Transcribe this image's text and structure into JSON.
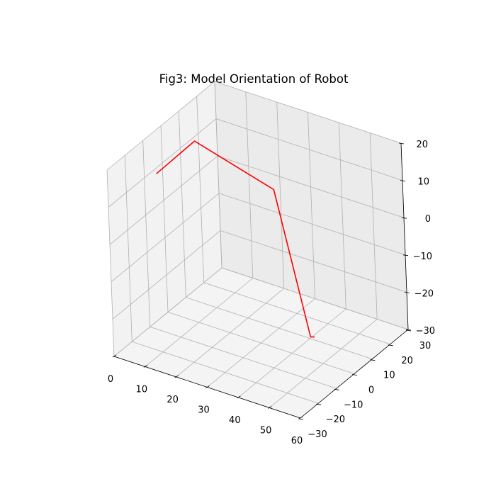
{
  "chart_data": {
    "type": "line3d",
    "title": "Fig3: Model Orientation of Robot",
    "xlabel": "",
    "ylabel": "",
    "zlabel": "",
    "xlim": [
      0,
      60
    ],
    "ylim": [
      -30,
      30
    ],
    "zlim": [
      -30,
      20
    ],
    "x_ticks": [
      "0",
      "10",
      "20",
      "30",
      "40",
      "50",
      "60"
    ],
    "y_ticks": [
      "−30",
      "−20",
      "−10",
      "0",
      "10",
      "20",
      "30"
    ],
    "z_ticks": [
      "−30",
      "−20",
      "−10",
      "0",
      "10",
      "20"
    ],
    "grid": true,
    "pane_colors": {
      "xz": "#f2f2f2",
      "yz": "#ebebeb",
      "floor": "#f4f4f4"
    },
    "series": [
      {
        "color": "#ff0000",
        "points": [
          [
            7,
            -15,
            15
          ],
          [
            12,
            -2,
            20
          ],
          [
            33,
            5,
            10
          ],
          [
            45,
            2,
            -25
          ],
          [
            46,
            2.5,
            -25
          ]
        ]
      }
    ]
  }
}
